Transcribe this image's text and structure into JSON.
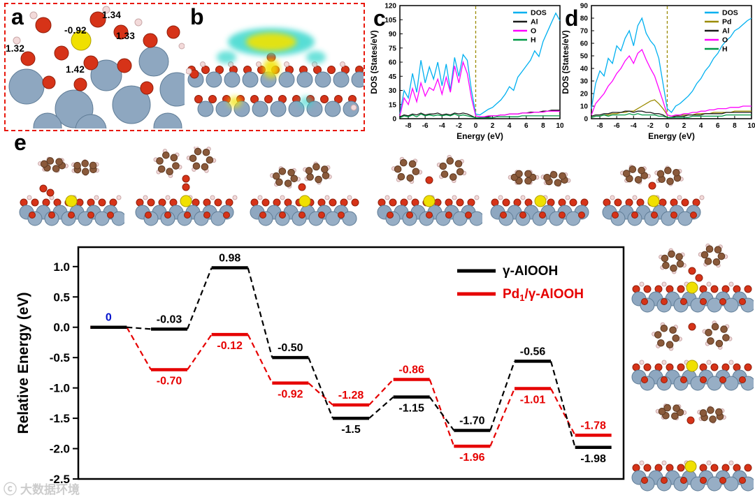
{
  "panels": {
    "a": {
      "label": "a",
      "annotations": {
        "bond_top": "1.34",
        "charge": "-0.92",
        "bond_right": "1.33",
        "bond_left": "1.32",
        "bond_mid": "1.42"
      }
    },
    "b": {
      "label": "b"
    },
    "c": {
      "label": "c"
    },
    "d": {
      "label": "d"
    },
    "e": {
      "label": "e"
    }
  },
  "watermark": {
    "icon": "ⓒ",
    "text": "大数据环境"
  },
  "chart_data": [
    {
      "id": "panel_c_dos_gamma_AlOOH",
      "type": "line",
      "panel": "c",
      "xlabel": "Energy (eV)",
      "ylabel": "DOS (States/eV)",
      "xlim": [
        -9,
        10
      ],
      "ylim": [
        0,
        120
      ],
      "xticks": [
        -8,
        -6,
        -4,
        -2,
        0,
        2,
        4,
        6,
        8,
        10
      ],
      "yticks": [
        0,
        15,
        30,
        45,
        60,
        75,
        90,
        105,
        120
      ],
      "fermi_x": 0,
      "legend_position": "top-right",
      "x": [
        -9,
        -8.5,
        -8,
        -7.5,
        -7,
        -6.5,
        -6,
        -5.5,
        -5,
        -4.5,
        -4,
        -3.5,
        -3,
        -2.5,
        -2,
        -1.5,
        -1,
        -0.5,
        0,
        0.5,
        1,
        1.5,
        2,
        2.5,
        3,
        3.5,
        4,
        4.5,
        5,
        5.5,
        6,
        6.5,
        7,
        7.5,
        8,
        8.5,
        9,
        9.5,
        10
      ],
      "series": [
        {
          "name": "DOS",
          "color": "#00b0f0",
          "values": [
            5,
            30,
            22,
            48,
            28,
            62,
            38,
            55,
            42,
            60,
            35,
            58,
            30,
            65,
            45,
            68,
            62,
            30,
            5,
            4,
            7,
            10,
            12,
            16,
            20,
            26,
            34,
            30,
            44,
            50,
            56,
            62,
            72,
            66,
            82,
            92,
            102,
            112,
            104
          ]
        },
        {
          "name": "Al",
          "color": "#1a1a1a",
          "values": [
            2,
            4,
            3,
            5,
            4,
            6,
            4,
            5,
            5,
            6,
            4,
            5,
            4,
            6,
            5,
            6,
            5,
            3,
            1,
            1,
            2,
            2,
            3,
            3,
            4,
            4,
            5,
            5,
            5,
            6,
            6,
            7,
            7,
            7,
            8,
            8,
            9,
            9,
            9
          ]
        },
        {
          "name": "O",
          "color": "#ff00ff",
          "values": [
            3,
            22,
            15,
            32,
            18,
            38,
            24,
            33,
            30,
            42,
            26,
            44,
            28,
            56,
            38,
            60,
            48,
            22,
            3,
            2,
            2,
            3,
            3,
            3,
            4,
            4,
            5,
            5,
            5,
            6,
            6,
            6,
            7,
            7,
            7,
            8,
            8,
            8,
            8
          ]
        },
        {
          "name": "H",
          "color": "#009944",
          "values": [
            1,
            3,
            2,
            4,
            2,
            5,
            3,
            4,
            3,
            4,
            3,
            4,
            3,
            5,
            3,
            4,
            3,
            2,
            1,
            1,
            1,
            1,
            1,
            2,
            2,
            2,
            2,
            2,
            2,
            3,
            3,
            3,
            3,
            3,
            3,
            3,
            3,
            3,
            3
          ]
        }
      ]
    },
    {
      "id": "panel_d_dos_Pd1_gamma_AlOOH",
      "type": "line",
      "panel": "d",
      "xlabel": "Energy (eV)",
      "ylabel": "DOS (States/eV)",
      "xlim": [
        -9,
        10
      ],
      "ylim": [
        0,
        90
      ],
      "xticks": [
        -8,
        -6,
        -4,
        -2,
        0,
        2,
        4,
        6,
        8,
        10
      ],
      "yticks": [
        0,
        10,
        20,
        30,
        40,
        50,
        60,
        70,
        80,
        90
      ],
      "fermi_x": 0,
      "legend_position": "top-right",
      "x": [
        -9,
        -8.5,
        -8,
        -7.5,
        -7,
        -6.5,
        -6,
        -5.5,
        -5,
        -4.5,
        -4,
        -3.5,
        -3,
        -2.5,
        -2,
        -1.5,
        -1,
        -0.5,
        0,
        0.5,
        1,
        1.5,
        2,
        2.5,
        3,
        3.5,
        4,
        4.5,
        5,
        5.5,
        6,
        6.5,
        7,
        7.5,
        8,
        8.5,
        9,
        9.5,
        10
      ],
      "series": [
        {
          "name": "DOS",
          "color": "#00b0f0",
          "values": [
            8,
            28,
            38,
            34,
            48,
            44,
            58,
            54,
            64,
            70,
            58,
            74,
            80,
            68,
            62,
            58,
            48,
            28,
            8,
            5,
            10,
            12,
            15,
            18,
            22,
            28,
            32,
            38,
            42,
            48,
            52,
            58,
            62,
            65,
            70,
            72,
            75,
            78,
            80
          ]
        },
        {
          "name": "Pd",
          "color": "#9b8b00",
          "values": [
            1,
            2,
            2,
            3,
            3,
            4,
            4,
            5,
            5,
            6,
            6,
            8,
            10,
            12,
            14,
            15,
            12,
            8,
            3,
            2,
            2,
            3,
            3,
            3,
            3,
            4,
            4,
            4,
            4,
            5,
            5,
            5,
            5,
            5,
            6,
            6,
            6,
            6,
            6
          ]
        },
        {
          "name": "Al",
          "color": "#1a1a1a",
          "values": [
            2,
            3,
            3,
            4,
            4,
            5,
            5,
            5,
            6,
            6,
            5,
            6,
            6,
            5,
            5,
            4,
            4,
            3,
            1,
            1,
            2,
            2,
            2,
            3,
            3,
            3,
            3,
            4,
            4,
            4,
            4,
            4,
            5,
            5,
            5,
            5,
            5,
            5,
            5
          ]
        },
        {
          "name": "O",
          "color": "#ff00ff",
          "values": [
            3,
            12,
            16,
            20,
            26,
            30,
            36,
            40,
            46,
            50,
            44,
            52,
            55,
            47,
            40,
            34,
            24,
            14,
            3,
            2,
            3,
            3,
            4,
            4,
            5,
            5,
            6,
            6,
            7,
            7,
            8,
            8,
            8,
            9,
            9,
            9,
            10,
            10,
            10
          ]
        },
        {
          "name": "H",
          "color": "#009944",
          "values": [
            1,
            2,
            2,
            3,
            2,
            3,
            3,
            3,
            3,
            4,
            3,
            4,
            3,
            3,
            3,
            3,
            2,
            2,
            1,
            1,
            1,
            1,
            1,
            1,
            2,
            2,
            2,
            2,
            2,
            2,
            2,
            2,
            3,
            3,
            3,
            3,
            3,
            3,
            3
          ]
        }
      ]
    },
    {
      "id": "panel_e_reaction_energy_profile",
      "type": "step-line",
      "panel": "e",
      "ylabel": "Relative Energy (eV)",
      "ylim": [
        -2.5,
        1.32
      ],
      "yticks": [
        "1.0",
        "0.5",
        "0.0",
        "-0.5",
        "-1.0",
        "-1.5",
        "-2.0",
        "-2.5"
      ],
      "legend_position": "top-right",
      "series": [
        {
          "name": "γ-AlOOH",
          "color": "#000000",
          "values": [
            0,
            -0.03,
            0.98,
            -0.5,
            -1.5,
            -1.15,
            -1.7,
            -0.56,
            -1.98
          ],
          "labels": [
            "0",
            "-0.03",
            "0.98",
            "-0.50",
            "-1.5",
            "-1.15",
            "-1.70",
            "-0.56",
            "-1.98"
          ],
          "label_pos": [
            "above",
            "above",
            "above",
            "above",
            "below",
            "below",
            "above",
            "above",
            "below"
          ],
          "label_colors": [
            "#0011cc",
            "#000000",
            "#000000",
            "#000000",
            "#000000",
            "#000000",
            "#000000",
            "#000000",
            "#000000"
          ]
        },
        {
          "name": "Pd1/γ-AlOOH",
          "color": "#e60000",
          "values": [
            0,
            -0.7,
            -0.12,
            -0.92,
            -1.28,
            -0.86,
            -1.96,
            -1.01,
            -1.78
          ],
          "labels": [
            "",
            "-0.70",
            "-0.12",
            "-0.92",
            "-1.28",
            "-0.86",
            "-1.96",
            "-1.01",
            "-1.78"
          ],
          "label_pos": [
            "none",
            "below",
            "below",
            "below",
            "above",
            "above",
            "below",
            "below",
            "above"
          ]
        }
      ],
      "legend": [
        {
          "color": "#000000",
          "parts": [
            {
              "t": "γ-AlOOH"
            }
          ]
        },
        {
          "color": "#e60000",
          "parts": [
            {
              "t": "Pd"
            },
            {
              "t": "1",
              "sub": true
            },
            {
              "t": "/γ-AlOOH"
            }
          ]
        }
      ]
    }
  ]
}
